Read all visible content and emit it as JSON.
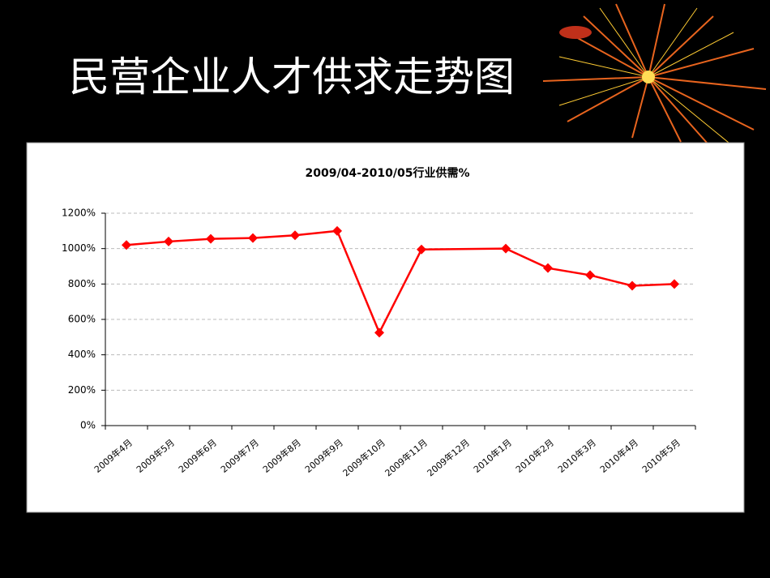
{
  "slide": {
    "title": "民营企业人才供求走势图"
  },
  "chart_data": {
    "type": "line",
    "title": "2009/04-2010/05行业供需%",
    "categories": [
      "2009年4月",
      "2009年5月",
      "2009年6月",
      "2009年7月",
      "2009年8月",
      "2009年9月",
      "2009年10月",
      "2009年11月",
      "2009年12月",
      "2010年1月",
      "2010年2月",
      "2010年3月",
      "2010年4月",
      "2010年5月"
    ],
    "values": [
      1020,
      1040,
      1055,
      1060,
      1075,
      1100,
      525,
      995,
      null,
      1000,
      890,
      850,
      790,
      800
    ],
    "color": "#ff0000",
    "connect_gaps": true,
    "ylim": [
      0,
      1200
    ],
    "yticks": [
      {
        "value": 0,
        "label": "0%"
      },
      {
        "value": 200,
        "label": "200%"
      },
      {
        "value": 400,
        "label": "400%"
      },
      {
        "value": 600,
        "label": "600%"
      },
      {
        "value": 800,
        "label": "800%"
      },
      {
        "value": 1000,
        "label": "1000%"
      },
      {
        "value": 1200,
        "label": "1200%"
      }
    ],
    "grid": true
  }
}
